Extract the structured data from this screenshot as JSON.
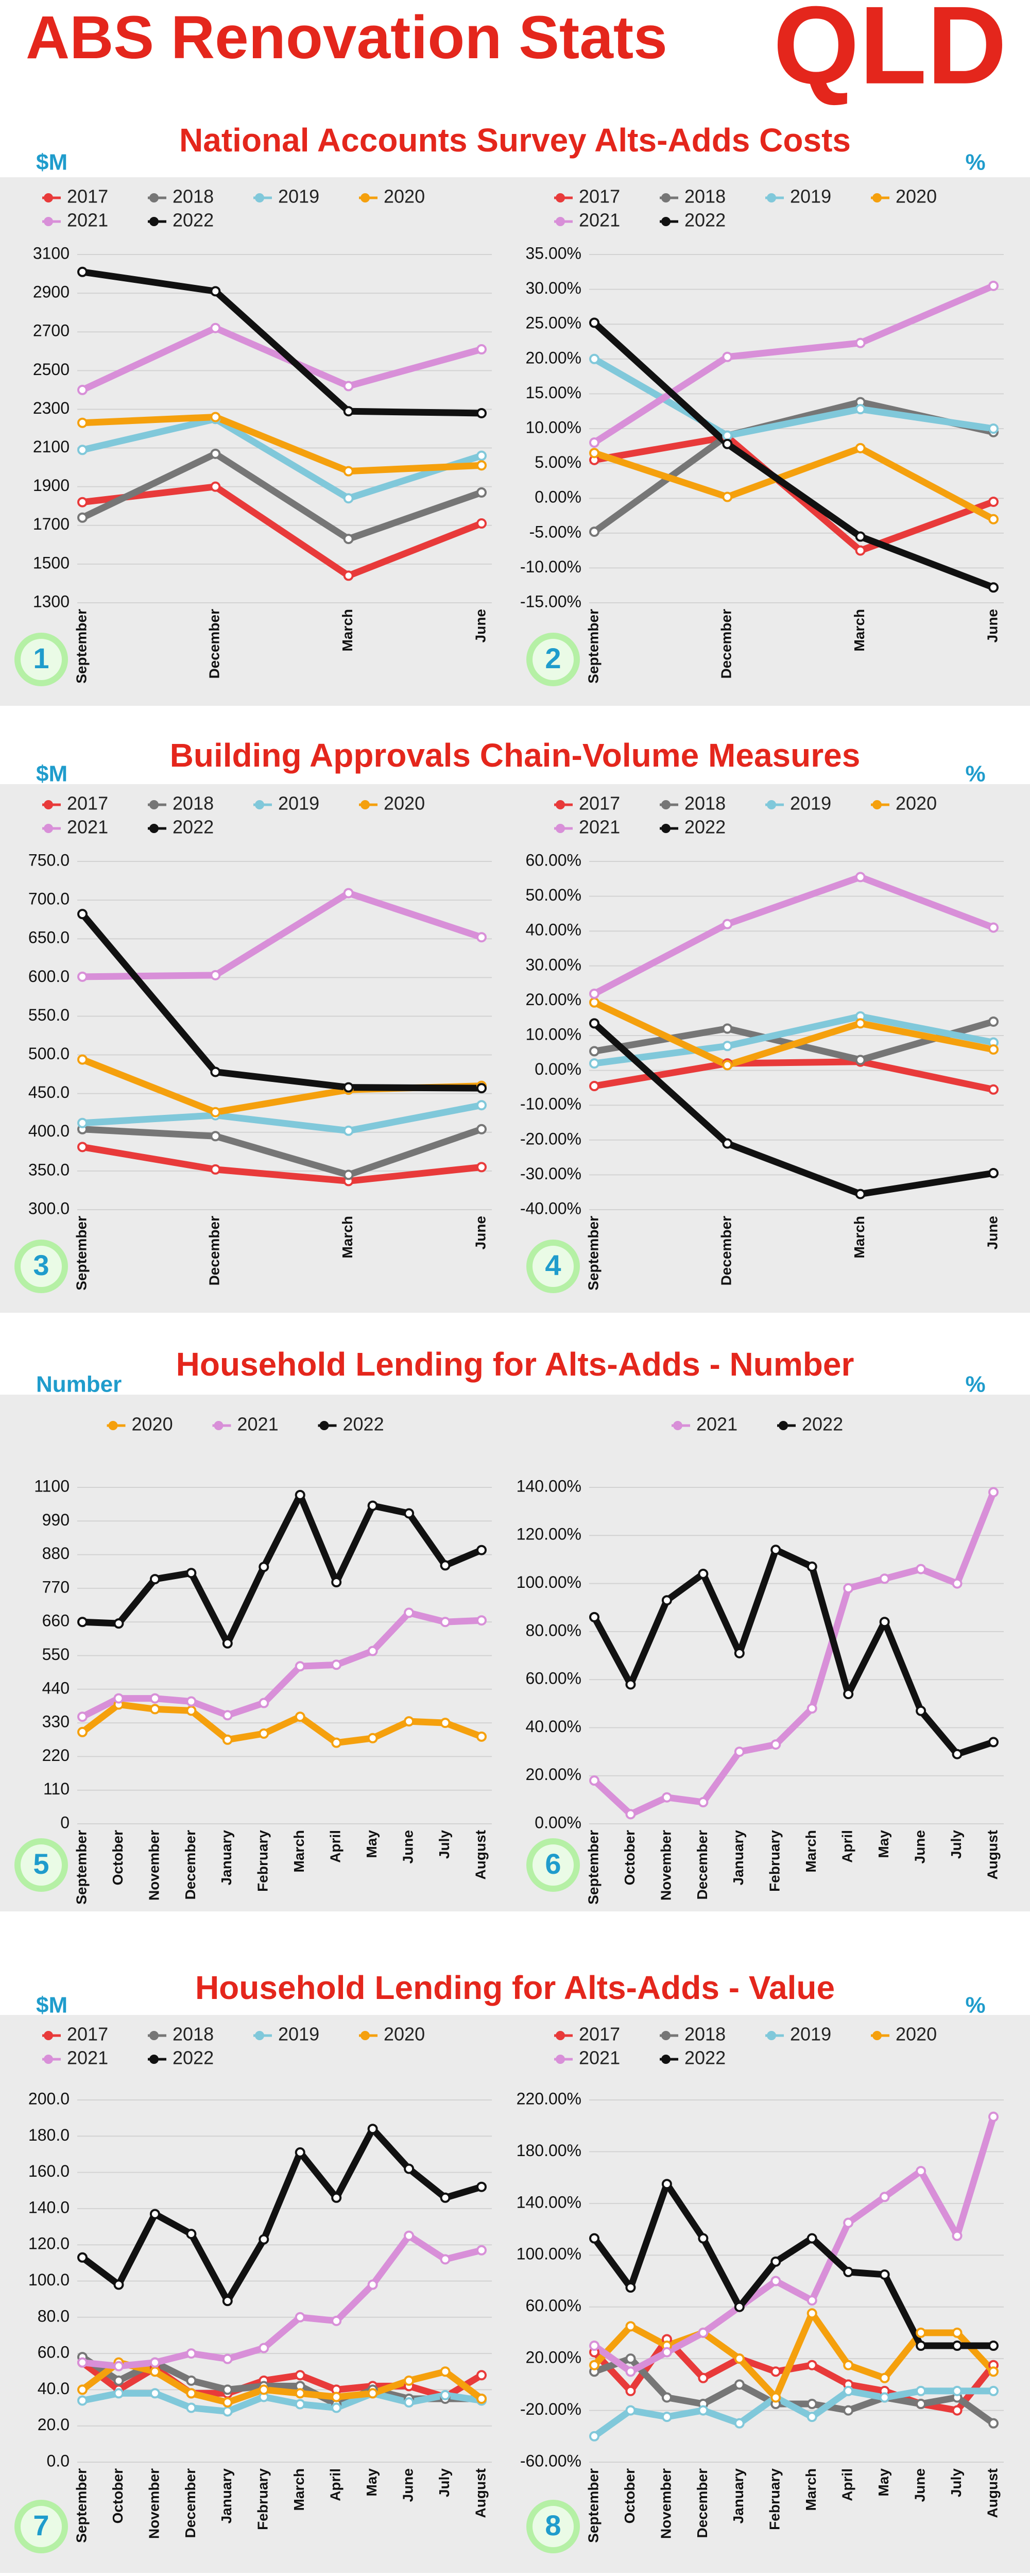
{
  "header": {
    "title": "ABS Renovation Stats",
    "region": "QLD"
  },
  "sections": [
    {
      "title": "National Accounts Survey Alts-Adds Costs"
    },
    {
      "title": "Building Approvals Chain-Volume Measures"
    },
    {
      "title": "Household Lending for Alts-Adds - Number"
    },
    {
      "title": "Household Lending for Alts-Adds - Value"
    }
  ],
  "chart_data": [
    {
      "type": "line",
      "unit": "$M",
      "number": "1",
      "categories": [
        "September",
        "December",
        "March",
        "June"
      ],
      "series": [
        {
          "name": "2017",
          "color": "#e83a3a",
          "values": [
            1820,
            1900,
            1440,
            1710
          ]
        },
        {
          "name": "2018",
          "color": "#767676",
          "values": [
            1740,
            2070,
            1630,
            1870
          ]
        },
        {
          "name": "2019",
          "color": "#80c8da",
          "values": [
            2090,
            2250,
            1840,
            2060
          ]
        },
        {
          "name": "2020",
          "color": "#f5a00d",
          "values": [
            2230,
            2260,
            1980,
            2010
          ]
        },
        {
          "name": "2021",
          "color": "#d88fd8",
          "values": [
            2400,
            2720,
            2420,
            2610
          ]
        },
        {
          "name": "2022",
          "color": "#111111",
          "values": [
            3010,
            2910,
            2290,
            2280
          ]
        }
      ],
      "ylim": [
        1300,
        3100
      ],
      "yticks": [
        1300,
        1500,
        1700,
        1900,
        2100,
        2300,
        2500,
        2700,
        2900,
        3100
      ],
      "grid": true
    },
    {
      "type": "line",
      "unit": "%",
      "number": "2",
      "categories": [
        "September",
        "December",
        "March",
        "June"
      ],
      "series": [
        {
          "name": "2017",
          "color": "#e83a3a",
          "values": [
            5.5,
            8.8,
            -7.5,
            -0.5
          ]
        },
        {
          "name": "2018",
          "color": "#767676",
          "values": [
            -4.8,
            9.0,
            13.8,
            9.5
          ]
        },
        {
          "name": "2019",
          "color": "#80c8da",
          "values": [
            20.0,
            9.0,
            12.8,
            10.0
          ]
        },
        {
          "name": "2020",
          "color": "#f5a00d",
          "values": [
            6.5,
            0.2,
            7.2,
            -3.0
          ]
        },
        {
          "name": "2021",
          "color": "#d88fd8",
          "values": [
            8.0,
            20.3,
            22.3,
            30.5
          ]
        },
        {
          "name": "2022",
          "color": "#111111",
          "values": [
            25.2,
            7.8,
            -5.5,
            -12.8
          ]
        }
      ],
      "ylim": [
        -15,
        35
      ],
      "yticks": [
        {
          "value": -15,
          "label": "-15.00%"
        },
        {
          "value": -10,
          "label": "-10.00%"
        },
        {
          "value": -5,
          "label": "-5.00%"
        },
        {
          "value": 0,
          "label": "0.00%"
        },
        {
          "value": 5,
          "label": "5.00%"
        },
        {
          "value": 10,
          "label": "10.00%"
        },
        {
          "value": 15,
          "label": "15.00%"
        },
        {
          "value": 20,
          "label": "20.00%"
        },
        {
          "value": 25,
          "label": "25.00%"
        },
        {
          "value": 30,
          "label": "30.00%"
        },
        {
          "value": 35,
          "label": "35.00%"
        }
      ],
      "grid": true
    },
    {
      "type": "line",
      "unit": "$M",
      "number": "3",
      "categories": [
        "September",
        "December",
        "March",
        "June"
      ],
      "series": [
        {
          "name": "2017",
          "color": "#e83a3a",
          "values": [
            381,
            352,
            337,
            355
          ]
        },
        {
          "name": "2018",
          "color": "#767676",
          "values": [
            404,
            395,
            345,
            404
          ]
        },
        {
          "name": "2019",
          "color": "#80c8da",
          "values": [
            412,
            422,
            402,
            435
          ]
        },
        {
          "name": "2020",
          "color": "#f5a00d",
          "values": [
            494,
            426,
            455,
            460
          ]
        },
        {
          "name": "2021",
          "color": "#d88fd8",
          "values": [
            601,
            603,
            709,
            652
          ]
        },
        {
          "name": "2022",
          "color": "#111111",
          "values": [
            682,
            478,
            458,
            457
          ]
        }
      ],
      "ylim": [
        300,
        750
      ],
      "yticks": [
        {
          "value": 300,
          "label": "300.0"
        },
        {
          "value": 350,
          "label": "350.0"
        },
        {
          "value": 400,
          "label": "400.0"
        },
        {
          "value": 450,
          "label": "450.0"
        },
        {
          "value": 500,
          "label": "500.0"
        },
        {
          "value": 550,
          "label": "550.0"
        },
        {
          "value": 600,
          "label": "600.0"
        },
        {
          "value": 650,
          "label": "650.0"
        },
        {
          "value": 700,
          "label": "700.0"
        },
        {
          "value": 750,
          "label": "750.0"
        }
      ],
      "grid": true
    },
    {
      "type": "line",
      "unit": "%",
      "number": "4",
      "categories": [
        "September",
        "December",
        "March",
        "June"
      ],
      "series": [
        {
          "name": "2017",
          "color": "#e83a3a",
          "values": [
            -4.5,
            2.0,
            2.5,
            -5.5
          ]
        },
        {
          "name": "2018",
          "color": "#767676",
          "values": [
            5.5,
            12.0,
            3.0,
            14.0
          ]
        },
        {
          "name": "2019",
          "color": "#80c8da",
          "values": [
            2.0,
            7.0,
            15.5,
            8.0
          ]
        },
        {
          "name": "2020",
          "color": "#f5a00d",
          "values": [
            19.5,
            1.5,
            13.5,
            6.0
          ]
        },
        {
          "name": "2021",
          "color": "#d88fd8",
          "values": [
            22.0,
            42.0,
            55.5,
            41.0
          ]
        },
        {
          "name": "2022",
          "color": "#111111",
          "values": [
            13.5,
            -21.0,
            -35.5,
            -29.5
          ]
        }
      ],
      "ylim": [
        -40,
        60
      ],
      "yticks": [
        {
          "value": -40,
          "label": "-40.00%"
        },
        {
          "value": -30,
          "label": "-30.00%"
        },
        {
          "value": -20,
          "label": "-20.00%"
        },
        {
          "value": -10,
          "label": "-10.00%"
        },
        {
          "value": 0,
          "label": "0.00%"
        },
        {
          "value": 10,
          "label": "10.00%"
        },
        {
          "value": 20,
          "label": "20.00%"
        },
        {
          "value": 30,
          "label": "30.00%"
        },
        {
          "value": 40,
          "label": "40.00%"
        },
        {
          "value": 50,
          "label": "50.00%"
        },
        {
          "value": 60,
          "label": "60.00%"
        }
      ],
      "grid": true
    },
    {
      "type": "line",
      "unit": "Number",
      "number": "5",
      "categories": [
        "September",
        "October",
        "November",
        "December",
        "January",
        "February",
        "March",
        "April",
        "May",
        "June",
        "July",
        "August"
      ],
      "series": [
        {
          "name": "2020",
          "color": "#f5a00d",
          "values": [
            300,
            390,
            375,
            370,
            275,
            295,
            350,
            265,
            280,
            335,
            330,
            285
          ]
        },
        {
          "name": "2021",
          "color": "#d88fd8",
          "values": [
            350,
            410,
            410,
            400,
            355,
            395,
            515,
            520,
            565,
            690,
            660,
            665
          ]
        },
        {
          "name": "2022",
          "color": "#111111",
          "values": [
            660,
            655,
            800,
            820,
            590,
            840,
            1075,
            790,
            1040,
            1015,
            845,
            895
          ]
        }
      ],
      "ylim": [
        0,
        1100
      ],
      "yticks": [
        0,
        110,
        220,
        330,
        440,
        550,
        660,
        770,
        880,
        990,
        1100
      ],
      "grid": true
    },
    {
      "type": "line",
      "unit": "%",
      "number": "6",
      "categories": [
        "September",
        "October",
        "November",
        "December",
        "January",
        "February",
        "March",
        "April",
        "May",
        "June",
        "July",
        "August"
      ],
      "series": [
        {
          "name": "2021",
          "color": "#d88fd8",
          "values": [
            18,
            4,
            11,
            9,
            30,
            33,
            48,
            98,
            102,
            106,
            100,
            138
          ]
        },
        {
          "name": "2022",
          "color": "#111111",
          "values": [
            86,
            58,
            93,
            104,
            71,
            114,
            107,
            54,
            84,
            47,
            29,
            34
          ]
        }
      ],
      "ylim": [
        0,
        140
      ],
      "yticks": [
        {
          "value": 0,
          "label": "0.00%"
        },
        {
          "value": 20,
          "label": "20.00%"
        },
        {
          "value": 40,
          "label": "40.00%"
        },
        {
          "value": 60,
          "label": "60.00%"
        },
        {
          "value": 80,
          "label": "80.00%"
        },
        {
          "value": 100,
          "label": "100.00%"
        },
        {
          "value": 120,
          "label": "120.00%"
        },
        {
          "value": 140,
          "label": "140.00%"
        }
      ],
      "grid": true
    },
    {
      "type": "line",
      "unit": "$M",
      "number": "7",
      "categories": [
        "September",
        "October",
        "November",
        "December",
        "January",
        "February",
        "March",
        "April",
        "May",
        "June",
        "July",
        "August"
      ],
      "series": [
        {
          "name": "2017",
          "color": "#e83a3a",
          "values": [
            55,
            40,
            52,
            38,
            38,
            45,
            48,
            40,
            42,
            42,
            36,
            48
          ]
        },
        {
          "name": "2018",
          "color": "#767676",
          "values": [
            58,
            45,
            55,
            45,
            40,
            42,
            42,
            32,
            40,
            35,
            35,
            35
          ]
        },
        {
          "name": "2019",
          "color": "#80c8da",
          "values": [
            34,
            38,
            38,
            30,
            28,
            36,
            32,
            30,
            38,
            33,
            37,
            34
          ]
        },
        {
          "name": "2020",
          "color": "#f5a00d",
          "values": [
            40,
            55,
            50,
            38,
            33,
            40,
            38,
            36,
            38,
            45,
            50,
            35
          ]
        },
        {
          "name": "2021",
          "color": "#d88fd8",
          "values": [
            55,
            53,
            55,
            60,
            57,
            63,
            80,
            78,
            98,
            125,
            112,
            117
          ]
        },
        {
          "name": "2022",
          "color": "#111111",
          "values": [
            113,
            98,
            137,
            126,
            89,
            123,
            171,
            146,
            184,
            162,
            146,
            152
          ]
        }
      ],
      "ylim": [
        0,
        200
      ],
      "yticks": [
        {
          "value": 0,
          "label": "0.0"
        },
        {
          "value": 20,
          "label": "20.0"
        },
        {
          "value": 40,
          "label": "40.0"
        },
        {
          "value": 60,
          "label": "60.0"
        },
        {
          "value": 80,
          "label": "80.0"
        },
        {
          "value": 100,
          "label": "100.0"
        },
        {
          "value": 120,
          "label": "120.0"
        },
        {
          "value": 140,
          "label": "140.0"
        },
        {
          "value": 160,
          "label": "160.0"
        },
        {
          "value": 180,
          "label": "180.0"
        },
        {
          "value": 200,
          "label": "200.0"
        }
      ],
      "grid": true
    },
    {
      "type": "line",
      "unit": "%",
      "number": "8",
      "categories": [
        "September",
        "October",
        "November",
        "December",
        "January",
        "February",
        "March",
        "April",
        "May",
        "June",
        "July",
        "August"
      ],
      "series": [
        {
          "name": "2017",
          "color": "#e83a3a",
          "values": [
            25,
            -5,
            35,
            5,
            20,
            10,
            15,
            0,
            -5,
            -15,
            -20,
            15
          ]
        },
        {
          "name": "2018",
          "color": "#767676",
          "values": [
            10,
            20,
            -10,
            -15,
            0,
            -15,
            -15,
            -20,
            -10,
            -15,
            -10,
            -30
          ]
        },
        {
          "name": "2019",
          "color": "#80c8da",
          "values": [
            -40,
            -20,
            -25,
            -20,
            -30,
            -10,
            -25,
            -5,
            -10,
            -5,
            -5,
            -5
          ]
        },
        {
          "name": "2020",
          "color": "#f5a00d",
          "values": [
            15,
            45,
            30,
            40,
            20,
            -10,
            55,
            15,
            5,
            40,
            40,
            10
          ]
        },
        {
          "name": "2021",
          "color": "#d88fd8",
          "values": [
            30,
            10,
            25,
            40,
            60,
            80,
            65,
            125,
            145,
            165,
            115,
            207
          ]
        },
        {
          "name": "2022",
          "color": "#111111",
          "values": [
            113,
            75,
            155,
            113,
            60,
            95,
            113,
            87,
            85,
            30,
            30,
            30
          ]
        }
      ],
      "ylim": [
        -60,
        220
      ],
      "yticks": [
        {
          "value": -60,
          "label": "-60.00%"
        },
        {
          "value": -20,
          "label": "-20.00%"
        },
        {
          "value": 20,
          "label": "20.00%"
        },
        {
          "value": 60,
          "label": "60.00%"
        },
        {
          "value": 100,
          "label": "100.00%"
        },
        {
          "value": 140,
          "label": "140.00%"
        },
        {
          "value": 180,
          "label": "180.00%"
        },
        {
          "value": 220,
          "label": "220.00%"
        }
      ],
      "grid": true
    }
  ]
}
